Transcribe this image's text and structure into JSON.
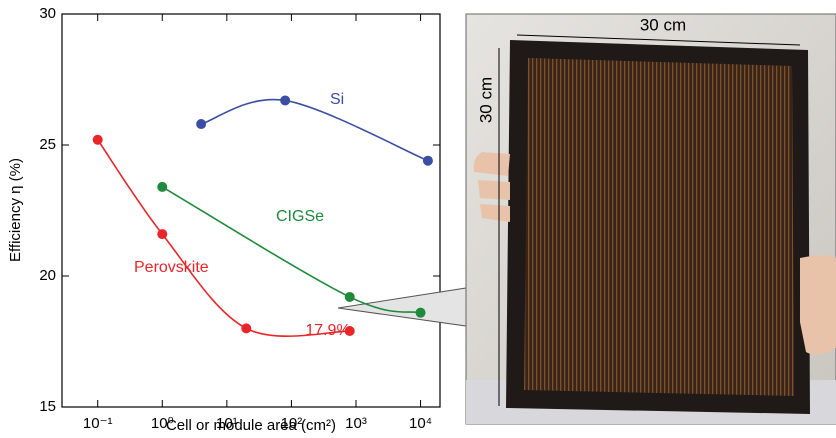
{
  "chart_data": {
    "type": "scatter",
    "xlabel": "Cell or module area (cm²)",
    "ylabel": "Efficiency η (%)",
    "xscale": "log",
    "xlim": [
      0.028,
      20000
    ],
    "ylim": [
      15,
      30
    ],
    "xticks": [
      {
        "value": 0.1,
        "label": "10⁻¹"
      },
      {
        "value": 1,
        "label": "10⁰"
      },
      {
        "value": 10,
        "label": "10¹"
      },
      {
        "value": 100,
        "label": "10²"
      },
      {
        "value": 1000,
        "label": "10³"
      },
      {
        "value": 10000,
        "label": "10⁴"
      }
    ],
    "yticks": [
      15,
      20,
      25,
      30
    ],
    "series": [
      {
        "name": "Si",
        "color": "#3a4fa3",
        "x": [
          4,
          80,
          13000
        ],
        "values": [
          25.8,
          26.7,
          24.4
        ]
      },
      {
        "name": "CIGSe",
        "color": "#1e8a3c",
        "x": [
          1,
          800,
          10000
        ],
        "values": [
          23.4,
          19.2,
          18.6
        ]
      },
      {
        "name": "Perovskite",
        "color": "#e8262a",
        "x": [
          0.1,
          1,
          20,
          800
        ],
        "values": [
          25.2,
          21.6,
          18.0,
          17.9
        ]
      }
    ],
    "annotation": "17.9%",
    "photo_labels": {
      "width": "30 cm",
      "height": "30 cm"
    }
  }
}
